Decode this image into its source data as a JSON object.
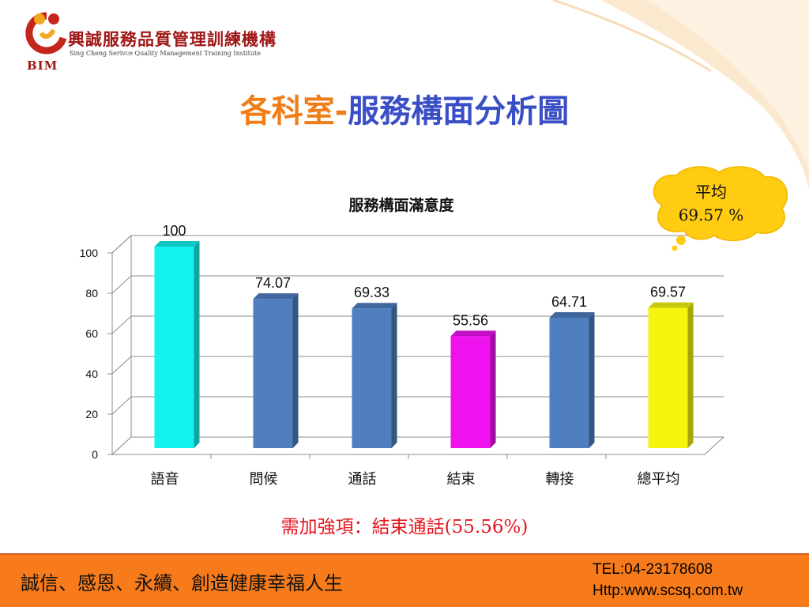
{
  "header": {
    "org_name": "興誠服務品質管理訓練機構",
    "org_name_en": "Sing Cheng Serivce Quality Management Training Institute",
    "logo_text": "BIM"
  },
  "title": {
    "part1": "各科室-",
    "part2": "服務構面分析圖"
  },
  "callout": {
    "line1": "平均",
    "line2": "69.57 %"
  },
  "chart_data": {
    "type": "bar",
    "title": "服務構面滿意度",
    "categories": [
      "語音",
      "問候",
      "通話",
      "結束",
      "轉接",
      "總平均"
    ],
    "values": [
      100,
      74.07,
      69.33,
      55.56,
      64.71,
      69.57
    ],
    "data_labels": [
      "100",
      "74.07",
      "69.33",
      "55.56",
      "64.71",
      "69.57"
    ],
    "bar_colors": [
      "#14f2f0",
      "#4f7fbf",
      "#4f7fbf",
      "#ee12ee",
      "#4f7fbf",
      "#f4f40f"
    ],
    "y_ticks": [
      "0",
      "20",
      "40",
      "60",
      "80",
      "100"
    ],
    "ylim": [
      0,
      100
    ],
    "grid": true,
    "xlabel": "",
    "ylabel": ""
  },
  "note": "需加強項：結束通話(55.56%)",
  "footer": {
    "slogan": "誠信、感恩、永續、創造健康幸福人生",
    "tel": "TEL:04-23178608",
    "url": "Http:www.scsq.com.tw"
  },
  "colors": {
    "footer_bg": "#f77b1a",
    "title_orange": "#f07d18",
    "title_blue": "#3a4fc6",
    "note_red": "#e8131b"
  }
}
